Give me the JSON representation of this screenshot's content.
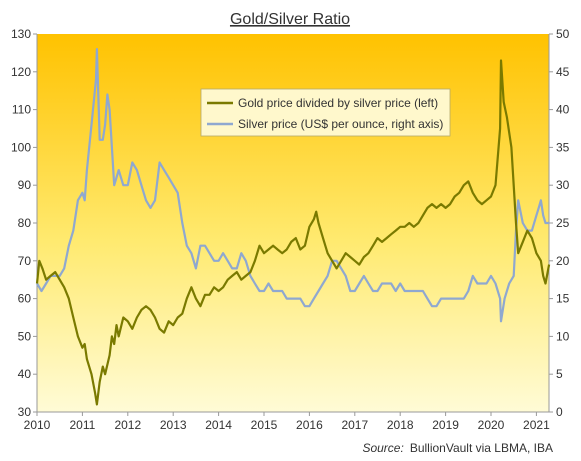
{
  "chart_data": {
    "type": "line",
    "title": "Gold/Silver Ratio",
    "source_prefix": "Source:",
    "source_text": "BullionVault via LBMA, IBA",
    "x_ticks": [
      "2010",
      "2011",
      "2012",
      "2013",
      "2014",
      "2015",
      "2016",
      "2017",
      "2018",
      "2019",
      "2020",
      "2021"
    ],
    "x_range": [
      2010,
      2021.35
    ],
    "y_left": {
      "min": 30,
      "max": 130,
      "ticks": [
        "30",
        "40",
        "50",
        "60",
        "70",
        "80",
        "90",
        "100",
        "110",
        "120",
        "130"
      ]
    },
    "y_right": {
      "min": 0,
      "max": 50,
      "ticks": [
        "0",
        "5",
        "10",
        "15",
        "20",
        "25",
        "30",
        "35",
        "40",
        "45",
        "50"
      ]
    },
    "grid": false,
    "legend_position": "top-right",
    "series": [
      {
        "name": "Gold price divided by silver price (left)",
        "axis": "left",
        "color": "#7a7a00",
        "points": [
          [
            2010.0,
            64
          ],
          [
            2010.05,
            70
          ],
          [
            2010.12,
            68
          ],
          [
            2010.2,
            65
          ],
          [
            2010.3,
            66
          ],
          [
            2010.4,
            67
          ],
          [
            2010.5,
            65
          ],
          [
            2010.6,
            63
          ],
          [
            2010.7,
            60
          ],
          [
            2010.8,
            55
          ],
          [
            2010.9,
            50
          ],
          [
            2011.0,
            47
          ],
          [
            2011.05,
            48
          ],
          [
            2011.1,
            44
          ],
          [
            2011.2,
            40
          ],
          [
            2011.28,
            35
          ],
          [
            2011.32,
            32
          ],
          [
            2011.38,
            38
          ],
          [
            2011.45,
            42
          ],
          [
            2011.5,
            40
          ],
          [
            2011.6,
            45
          ],
          [
            2011.65,
            50
          ],
          [
            2011.7,
            48
          ],
          [
            2011.75,
            53
          ],
          [
            2011.8,
            50
          ],
          [
            2011.9,
            55
          ],
          [
            2012.0,
            54
          ],
          [
            2012.1,
            52
          ],
          [
            2012.2,
            55
          ],
          [
            2012.3,
            57
          ],
          [
            2012.4,
            58
          ],
          [
            2012.5,
            57
          ],
          [
            2012.6,
            55
          ],
          [
            2012.7,
            52
          ],
          [
            2012.8,
            51
          ],
          [
            2012.9,
            54
          ],
          [
            2013.0,
            53
          ],
          [
            2013.1,
            55
          ],
          [
            2013.2,
            56
          ],
          [
            2013.3,
            60
          ],
          [
            2013.4,
            63
          ],
          [
            2013.5,
            60
          ],
          [
            2013.6,
            58
          ],
          [
            2013.7,
            61
          ],
          [
            2013.8,
            61
          ],
          [
            2013.9,
            63
          ],
          [
            2014.0,
            62
          ],
          [
            2014.1,
            63
          ],
          [
            2014.2,
            65
          ],
          [
            2014.3,
            66
          ],
          [
            2014.4,
            67
          ],
          [
            2014.5,
            65
          ],
          [
            2014.6,
            66
          ],
          [
            2014.7,
            67
          ],
          [
            2014.8,
            70
          ],
          [
            2014.9,
            74
          ],
          [
            2015.0,
            72
          ],
          [
            2015.1,
            73
          ],
          [
            2015.2,
            74
          ],
          [
            2015.3,
            73
          ],
          [
            2015.4,
            72
          ],
          [
            2015.5,
            73
          ],
          [
            2015.6,
            75
          ],
          [
            2015.7,
            76
          ],
          [
            2015.8,
            73
          ],
          [
            2015.9,
            74
          ],
          [
            2016.0,
            79
          ],
          [
            2016.1,
            81
          ],
          [
            2016.15,
            83
          ],
          [
            2016.2,
            80
          ],
          [
            2016.3,
            76
          ],
          [
            2016.4,
            72
          ],
          [
            2016.5,
            70
          ],
          [
            2016.6,
            68
          ],
          [
            2016.7,
            70
          ],
          [
            2016.8,
            72
          ],
          [
            2016.9,
            71
          ],
          [
            2017.0,
            70
          ],
          [
            2017.1,
            69
          ],
          [
            2017.2,
            71
          ],
          [
            2017.3,
            72
          ],
          [
            2017.4,
            74
          ],
          [
            2017.5,
            76
          ],
          [
            2017.6,
            75
          ],
          [
            2017.7,
            76
          ],
          [
            2017.8,
            77
          ],
          [
            2017.9,
            78
          ],
          [
            2018.0,
            79
          ],
          [
            2018.1,
            79
          ],
          [
            2018.2,
            80
          ],
          [
            2018.3,
            79
          ],
          [
            2018.4,
            80
          ],
          [
            2018.5,
            82
          ],
          [
            2018.6,
            84
          ],
          [
            2018.7,
            85
          ],
          [
            2018.8,
            84
          ],
          [
            2018.9,
            85
          ],
          [
            2019.0,
            84
          ],
          [
            2019.1,
            85
          ],
          [
            2019.2,
            87
          ],
          [
            2019.3,
            88
          ],
          [
            2019.4,
            90
          ],
          [
            2019.5,
            91
          ],
          [
            2019.6,
            88
          ],
          [
            2019.7,
            86
          ],
          [
            2019.8,
            85
          ],
          [
            2019.9,
            86
          ],
          [
            2020.0,
            87
          ],
          [
            2020.1,
            90
          ],
          [
            2020.2,
            105
          ],
          [
            2020.22,
            123
          ],
          [
            2020.28,
            112
          ],
          [
            2020.35,
            108
          ],
          [
            2020.45,
            100
          ],
          [
            2020.55,
            80
          ],
          [
            2020.6,
            72
          ],
          [
            2020.7,
            75
          ],
          [
            2020.8,
            78
          ],
          [
            2020.9,
            76
          ],
          [
            2021.0,
            72
          ],
          [
            2021.1,
            70
          ],
          [
            2021.15,
            66
          ],
          [
            2021.2,
            64
          ],
          [
            2021.28,
            69
          ]
        ]
      },
      {
        "name": "Silver price (US$ per ounce, right axis)",
        "axis": "right",
        "color": "#8fa8d0",
        "points": [
          [
            2010.0,
            17
          ],
          [
            2010.1,
            16
          ],
          [
            2010.2,
            17
          ],
          [
            2010.3,
            18
          ],
          [
            2010.4,
            18
          ],
          [
            2010.5,
            18
          ],
          [
            2010.6,
            19
          ],
          [
            2010.7,
            22
          ],
          [
            2010.8,
            24
          ],
          [
            2010.9,
            28
          ],
          [
            2011.0,
            29
          ],
          [
            2011.05,
            28
          ],
          [
            2011.1,
            32
          ],
          [
            2011.2,
            38
          ],
          [
            2011.3,
            44
          ],
          [
            2011.32,
            48
          ],
          [
            2011.38,
            36
          ],
          [
            2011.45,
            36
          ],
          [
            2011.5,
            38
          ],
          [
            2011.55,
            42
          ],
          [
            2011.6,
            40
          ],
          [
            2011.7,
            30
          ],
          [
            2011.8,
            32
          ],
          [
            2011.9,
            30
          ],
          [
            2012.0,
            30
          ],
          [
            2012.1,
            33
          ],
          [
            2012.2,
            32
          ],
          [
            2012.3,
            30
          ],
          [
            2012.4,
            28
          ],
          [
            2012.5,
            27
          ],
          [
            2012.6,
            28
          ],
          [
            2012.7,
            33
          ],
          [
            2012.8,
            32
          ],
          [
            2012.9,
            31
          ],
          [
            2013.0,
            30
          ],
          [
            2013.1,
            29
          ],
          [
            2013.2,
            25
          ],
          [
            2013.3,
            22
          ],
          [
            2013.4,
            21
          ],
          [
            2013.5,
            19
          ],
          [
            2013.6,
            22
          ],
          [
            2013.7,
            22
          ],
          [
            2013.8,
            21
          ],
          [
            2013.9,
            20
          ],
          [
            2014.0,
            20
          ],
          [
            2014.1,
            21
          ],
          [
            2014.2,
            20
          ],
          [
            2014.3,
            19
          ],
          [
            2014.4,
            19
          ],
          [
            2014.5,
            21
          ],
          [
            2014.6,
            20
          ],
          [
            2014.7,
            18
          ],
          [
            2014.8,
            17
          ],
          [
            2014.9,
            16
          ],
          [
            2015.0,
            16
          ],
          [
            2015.1,
            17
          ],
          [
            2015.2,
            16
          ],
          [
            2015.3,
            16
          ],
          [
            2015.4,
            16
          ],
          [
            2015.5,
            15
          ],
          [
            2015.6,
            15
          ],
          [
            2015.7,
            15
          ],
          [
            2015.8,
            15
          ],
          [
            2015.9,
            14
          ],
          [
            2016.0,
            14
          ],
          [
            2016.1,
            15
          ],
          [
            2016.2,
            16
          ],
          [
            2016.3,
            17
          ],
          [
            2016.4,
            18
          ],
          [
            2016.5,
            20
          ],
          [
            2016.6,
            20
          ],
          [
            2016.7,
            19
          ],
          [
            2016.8,
            18
          ],
          [
            2016.9,
            16
          ],
          [
            2017.0,
            16
          ],
          [
            2017.1,
            17
          ],
          [
            2017.2,
            18
          ],
          [
            2017.3,
            17
          ],
          [
            2017.4,
            16
          ],
          [
            2017.5,
            16
          ],
          [
            2017.6,
            17
          ],
          [
            2017.7,
            17
          ],
          [
            2017.8,
            17
          ],
          [
            2017.9,
            16
          ],
          [
            2018.0,
            17
          ],
          [
            2018.1,
            16
          ],
          [
            2018.2,
            16
          ],
          [
            2018.3,
            16
          ],
          [
            2018.4,
            16
          ],
          [
            2018.5,
            16
          ],
          [
            2018.6,
            15
          ],
          [
            2018.7,
            14
          ],
          [
            2018.8,
            14
          ],
          [
            2018.9,
            15
          ],
          [
            2019.0,
            15
          ],
          [
            2019.1,
            15
          ],
          [
            2019.2,
            15
          ],
          [
            2019.3,
            15
          ],
          [
            2019.4,
            15
          ],
          [
            2019.5,
            16
          ],
          [
            2019.6,
            18
          ],
          [
            2019.7,
            17
          ],
          [
            2019.8,
            17
          ],
          [
            2019.9,
            17
          ],
          [
            2020.0,
            18
          ],
          [
            2020.1,
            17
          ],
          [
            2020.2,
            15
          ],
          [
            2020.22,
            12
          ],
          [
            2020.3,
            15
          ],
          [
            2020.4,
            17
          ],
          [
            2020.5,
            18
          ],
          [
            2020.55,
            24
          ],
          [
            2020.6,
            28
          ],
          [
            2020.7,
            25
          ],
          [
            2020.8,
            24
          ],
          [
            2020.9,
            24
          ],
          [
            2021.0,
            26
          ],
          [
            2021.05,
            27
          ],
          [
            2021.1,
            28
          ],
          [
            2021.15,
            26
          ],
          [
            2021.2,
            25
          ],
          [
            2021.28,
            25
          ]
        ]
      }
    ]
  }
}
